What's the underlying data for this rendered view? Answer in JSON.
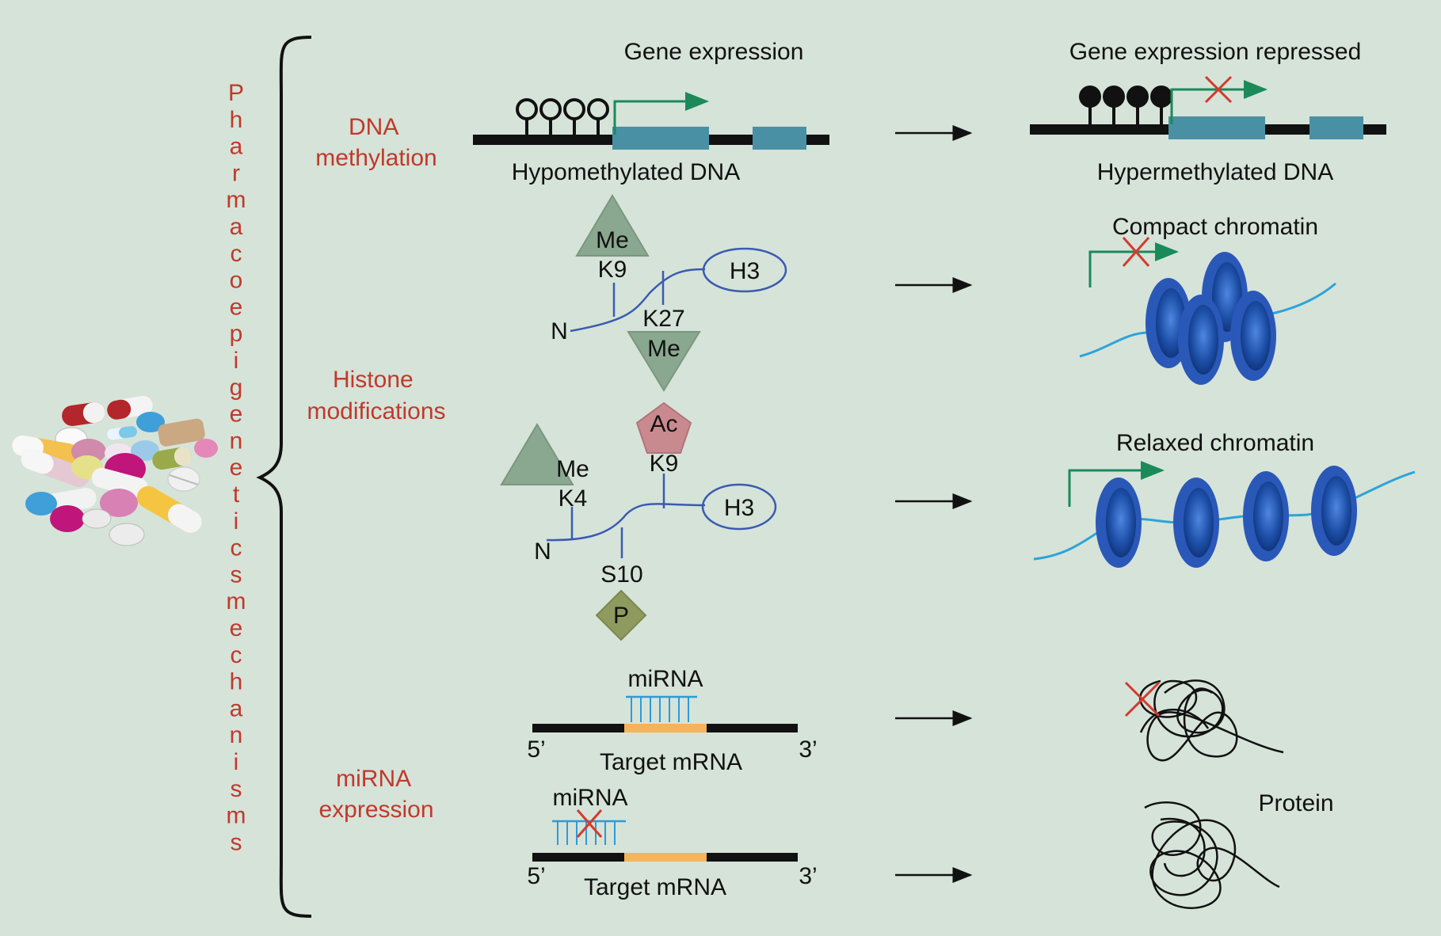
{
  "title_vertical": "Pharmacoepigenetics mechanisms",
  "headers": {
    "left": "Gene expression",
    "right": "Gene expression repressed"
  },
  "mechanisms": {
    "dna": [
      "DNA",
      "methylation"
    ],
    "histone": [
      "Histone",
      "modifications"
    ],
    "mirna": [
      "miRNA",
      "expression"
    ]
  },
  "dna_row": {
    "left_label": "Hypomethylated DNA",
    "right_label": "Hypermethylated DNA"
  },
  "histone_top": {
    "me_k9": "Me",
    "k9": "K9",
    "h3": "H3",
    "n": "N",
    "k27": "K27",
    "me_k27": "Me",
    "result": "Compact chromatin"
  },
  "histone_bottom": {
    "ac": "Ac",
    "k9": "K9",
    "me_k4": "Me",
    "k4": "K4",
    "h3": "H3",
    "n": "N",
    "s10": "S10",
    "p": "P",
    "result": "Relaxed chromatin"
  },
  "mirna_top": {
    "mirna": "miRNA",
    "five": "5’",
    "three": "3’",
    "target": "Target mRNA"
  },
  "mirna_bottom": {
    "mirna": "miRNA",
    "five": "5’",
    "three": "3’",
    "target": "Target mRNA"
  },
  "protein_label": "Protein",
  "colors": {
    "background": "#d6e3d9",
    "accent_red": "#c0392b",
    "exon_teal": "#4a90a4",
    "arrow_green": "#1a8a5a",
    "histone_blue": "#3a5bb0",
    "nucleosome_blue": "#1d4fa8",
    "dna_cyan": "#2ea3d8",
    "mrna_orange": "#f5b35a",
    "mirna_blue": "#2e9bd6",
    "methyl_green": "#8aa88f",
    "acetyl_pink": "#c98a8f",
    "phospho_olive": "#8f9a5e"
  }
}
